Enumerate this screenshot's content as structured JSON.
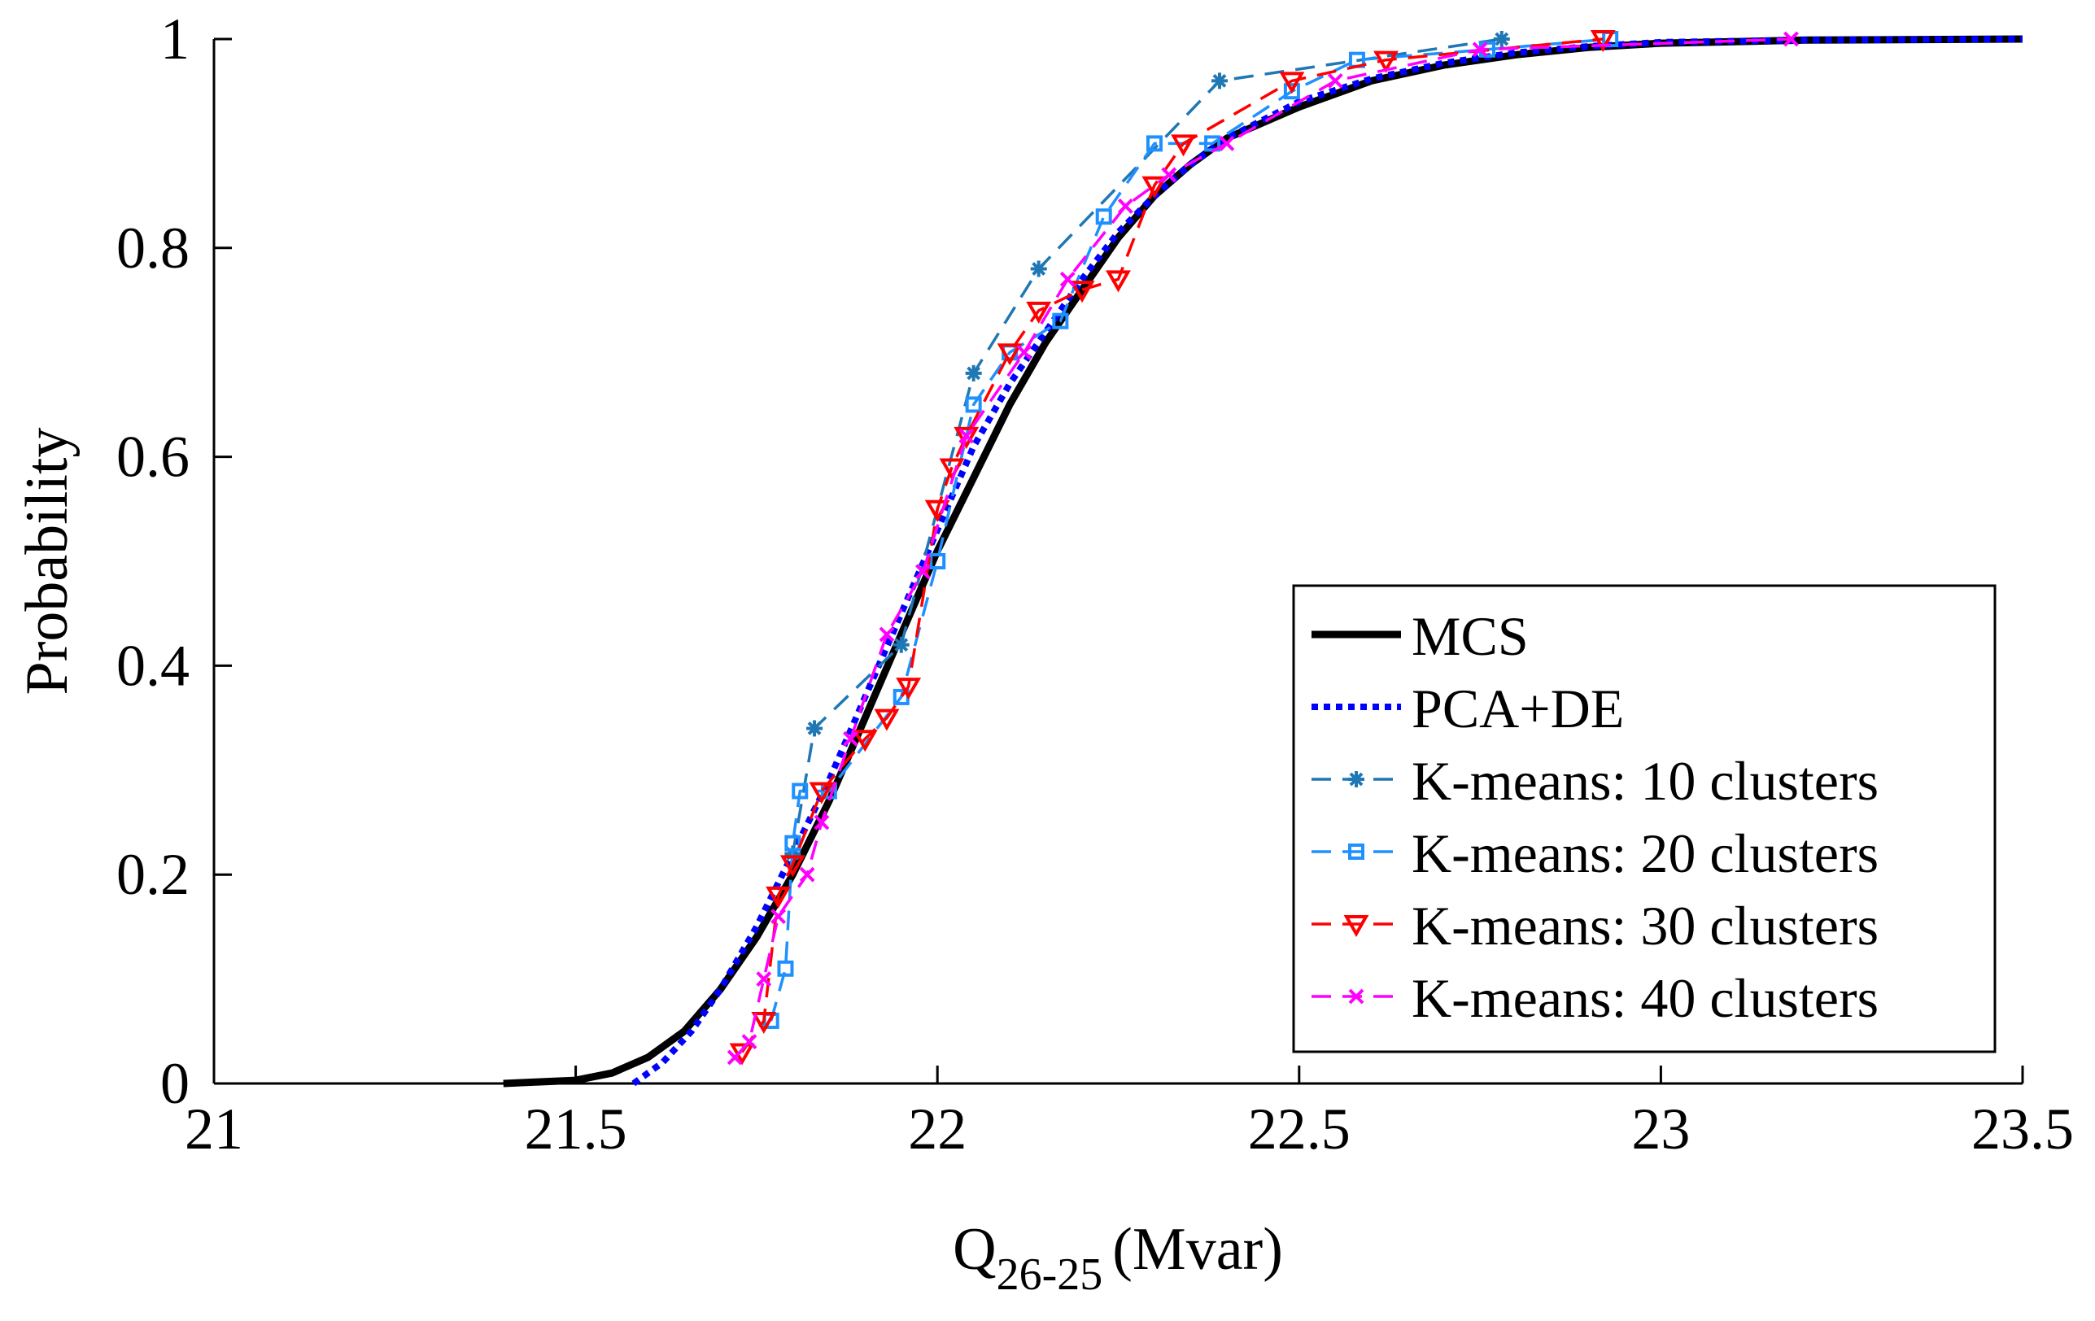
{
  "chart_data": {
    "type": "line",
    "title": "",
    "xlabel": {
      "main": "Q",
      "sub": "26-25",
      "unit": "(Mvar)"
    },
    "ylabel": "Probability",
    "xlim": [
      21,
      23.5
    ],
    "ylim": [
      0,
      1
    ],
    "xticks": [
      21,
      21.5,
      22,
      22.5,
      23,
      23.5
    ],
    "xtick_labels": [
      "21",
      "21.5",
      "22",
      "22.5",
      "23",
      "23.5"
    ],
    "yticks": [
      0,
      0.2,
      0.4,
      0.6,
      0.8,
      1
    ],
    "ytick_labels": [
      "0",
      "0.2",
      "0.4",
      "0.6",
      "0.8",
      "1"
    ],
    "grid": false,
    "legend_position": "bottom-right",
    "series": [
      {
        "name": "MCS",
        "color": "#000000",
        "style": "solid",
        "marker": "none",
        "x": [
          21.4,
          21.5,
          21.55,
          21.6,
          21.65,
          21.7,
          21.75,
          21.8,
          21.85,
          21.9,
          21.95,
          22.0,
          22.05,
          22.1,
          22.15,
          22.2,
          22.25,
          22.3,
          22.35,
          22.4,
          22.5,
          22.6,
          22.7,
          22.8,
          22.9,
          23.0,
          23.2,
          23.5
        ],
        "y": [
          0,
          0.003,
          0.01,
          0.025,
          0.05,
          0.09,
          0.14,
          0.2,
          0.27,
          0.35,
          0.43,
          0.51,
          0.58,
          0.65,
          0.71,
          0.76,
          0.81,
          0.85,
          0.88,
          0.905,
          0.935,
          0.96,
          0.975,
          0.985,
          0.992,
          0.996,
          0.999,
          1.0
        ]
      },
      {
        "name": "PCA+DE",
        "color": "#0000ff",
        "style": "dotted",
        "marker": "none",
        "x": [
          21.58,
          21.62,
          21.66,
          21.7,
          21.75,
          21.8,
          21.85,
          21.9,
          21.95,
          22.0,
          22.05,
          22.1,
          22.15,
          22.2,
          22.25,
          22.3,
          22.35,
          22.4,
          22.5,
          22.6,
          22.7,
          22.8,
          22.9,
          23.0,
          23.2,
          23.5
        ],
        "y": [
          0,
          0.02,
          0.05,
          0.09,
          0.15,
          0.22,
          0.29,
          0.37,
          0.45,
          0.53,
          0.61,
          0.67,
          0.72,
          0.77,
          0.815,
          0.85,
          0.88,
          0.905,
          0.94,
          0.962,
          0.977,
          0.987,
          0.993,
          0.997,
          0.999,
          1.0
        ]
      },
      {
        "name": "K-means: 10 clusters",
        "color": "#1f77b4",
        "style": "dashed",
        "marker": "asterisk",
        "x": [
          21.8,
          21.83,
          21.95,
          22.05,
          22.14,
          22.39,
          22.78
        ],
        "y": [
          0.22,
          0.34,
          0.42,
          0.68,
          0.78,
          0.96,
          1.0
        ]
      },
      {
        "name": "K-means: 20 clusters",
        "color": "#1e90ff",
        "style": "dashed",
        "marker": "square",
        "x": [
          21.77,
          21.79,
          21.8,
          21.81,
          21.85,
          21.95,
          22.0,
          22.05,
          22.1,
          22.17,
          22.23,
          22.3,
          22.38,
          22.49,
          22.58,
          22.76,
          22.93
        ],
        "y": [
          0.06,
          0.11,
          0.23,
          0.28,
          0.28,
          0.37,
          0.5,
          0.65,
          0.7,
          0.73,
          0.83,
          0.9,
          0.9,
          0.95,
          0.98,
          0.99,
          1.0
        ]
      },
      {
        "name": "K-means: 30 clusters",
        "color": "#ff0000",
        "style": "dashed",
        "marker": "triangle-down",
        "x": [
          21.73,
          21.76,
          21.78,
          21.8,
          21.84,
          21.9,
          21.93,
          21.96,
          22.0,
          22.02,
          22.04,
          22.1,
          22.14,
          22.2,
          22.25,
          22.3,
          22.34,
          22.49,
          22.62,
          22.92
        ],
        "y": [
          0.03,
          0.06,
          0.18,
          0.21,
          0.28,
          0.33,
          0.35,
          0.38,
          0.55,
          0.59,
          0.62,
          0.7,
          0.74,
          0.76,
          0.77,
          0.86,
          0.9,
          0.96,
          0.98,
          1.0
        ]
      },
      {
        "name": "K-means: 40 clusters",
        "color": "#ff00ff",
        "style": "dashed",
        "marker": "x",
        "x": [
          21.72,
          21.74,
          21.76,
          21.78,
          21.82,
          21.84,
          21.88,
          21.93,
          21.98,
          22.04,
          22.12,
          22.18,
          22.26,
          22.32,
          22.4,
          22.55,
          22.75,
          23.18
        ],
        "y": [
          0.025,
          0.04,
          0.1,
          0.16,
          0.2,
          0.25,
          0.33,
          0.43,
          0.49,
          0.62,
          0.7,
          0.77,
          0.84,
          0.87,
          0.9,
          0.96,
          0.99,
          1.0
        ]
      }
    ]
  }
}
